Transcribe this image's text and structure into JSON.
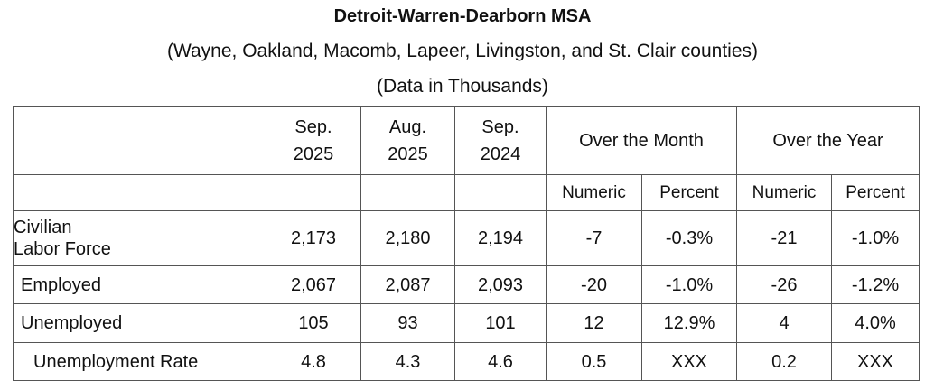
{
  "title": "Detroit-Warren-Dearborn MSA",
  "subtitle": "(Wayne, Oakland, Macomb, Lapeer, Livingston, and St. Clair counties)",
  "units": "(Data in Thousands)",
  "headers": {
    "c1": [
      "Sep.",
      "2025"
    ],
    "c2": [
      "Aug.",
      "2025"
    ],
    "c3": [
      "Sep.",
      "2024"
    ],
    "over_month": "Over the Month",
    "over_year": "Over the Year",
    "numeric": "Numeric",
    "percent": "Percent"
  },
  "rows": [
    {
      "label": [
        "Civilian",
        "Labor Force"
      ],
      "values": [
        "2,173",
        "2,180",
        "2,194",
        "-7",
        "-0.3%",
        "-21",
        "-1.0%"
      ]
    },
    {
      "label": [
        "Employed"
      ],
      "values": [
        "2,067",
        "2,087",
        "2,093",
        "-20",
        "-1.0%",
        "-26",
        "-1.2%"
      ]
    },
    {
      "label": [
        "Unemployed"
      ],
      "values": [
        "105",
        "93",
        "101",
        "12",
        "12.9%",
        "4",
        "4.0%"
      ]
    },
    {
      "label": [
        "Unemployment Rate"
      ],
      "values": [
        "4.8",
        "4.3",
        "4.6",
        "0.5",
        "XXX",
        "0.2",
        "XXX"
      ]
    }
  ]
}
